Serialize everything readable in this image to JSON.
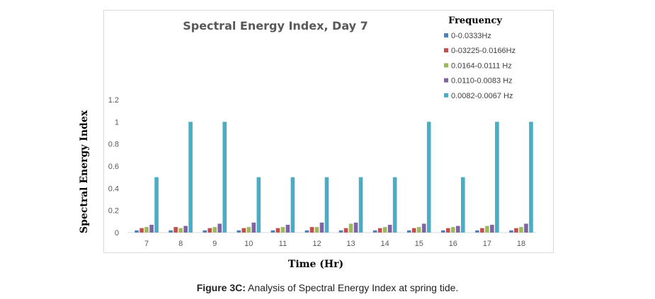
{
  "chart_data": {
    "type": "bar",
    "title": "Spectral Energy Index, Day 7",
    "xlabel": "Time (Hr)",
    "ylabel": "Spectral Energy Index",
    "legend_title": "Frequency",
    "legend_position": "top-right",
    "ylim": [
      0,
      1.2
    ],
    "yticks": [
      "0",
      "0.2",
      "0.4",
      "0.6",
      "0.8",
      "1",
      "1.2"
    ],
    "grid": false,
    "categories": [
      "7",
      "8",
      "9",
      "10",
      "11",
      "12",
      "13",
      "14",
      "15",
      "16",
      "17",
      "18"
    ],
    "series": [
      {
        "name": "0-0.0333Hz",
        "color": "#4f81bd",
        "values": [
          0.02,
          0.02,
          0.02,
          0.02,
          0.02,
          0.02,
          0.02,
          0.02,
          0.02,
          0.02,
          0.02,
          0.02
        ]
      },
      {
        "name": "0-03225-0.0166Hz",
        "color": "#c0504d",
        "values": [
          0.04,
          0.05,
          0.04,
          0.04,
          0.04,
          0.05,
          0.04,
          0.04,
          0.04,
          0.04,
          0.04,
          0.04
        ]
      },
      {
        "name": "0.0164-0.0111 Hz",
        "color": "#9bbb59",
        "values": [
          0.05,
          0.04,
          0.05,
          0.05,
          0.05,
          0.05,
          0.08,
          0.05,
          0.05,
          0.05,
          0.06,
          0.05
        ]
      },
      {
        "name": "0.0110-0.0083 Hz",
        "color": "#8064a2",
        "values": [
          0.07,
          0.06,
          0.08,
          0.09,
          0.07,
          0.09,
          0.09,
          0.07,
          0.08,
          0.06,
          0.07,
          0.08
        ]
      },
      {
        "name": "0.0082-0.0067 Hz",
        "color": "#4bacc6",
        "values": [
          0.5,
          1,
          1,
          0.5,
          0.5,
          0.5,
          0.5,
          0.5,
          1,
          0.5,
          1,
          1
        ]
      }
    ]
  },
  "caption": {
    "label": "Figure 3C:",
    "text": " Analysis of Spectral Energy Index at spring tide."
  }
}
